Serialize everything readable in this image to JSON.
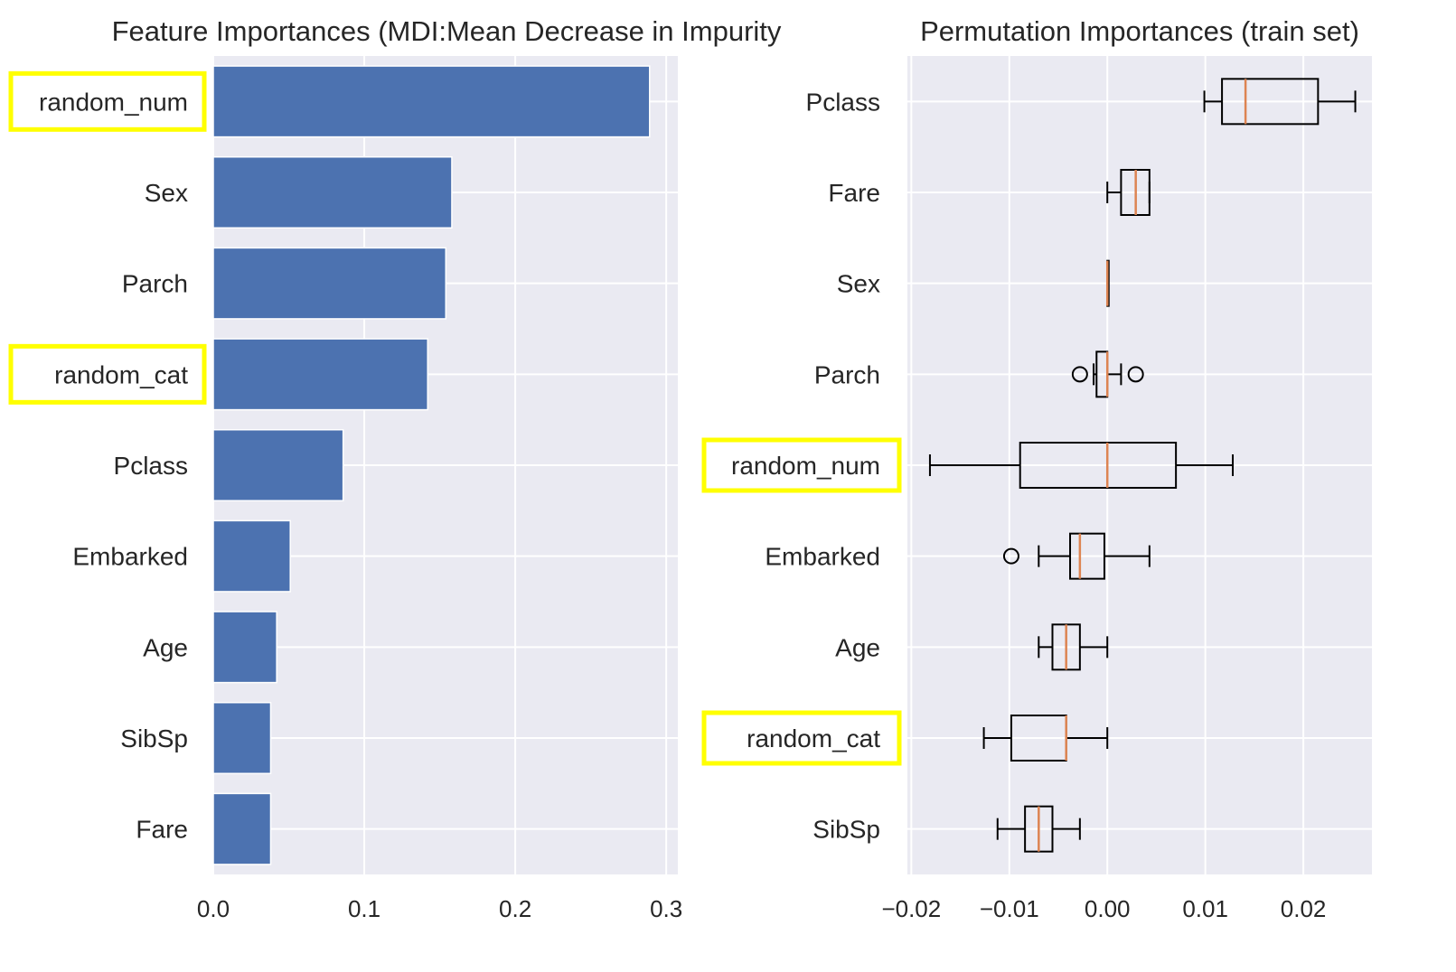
{
  "colors": {
    "plot_background": "#eaeaf2",
    "grid": "#ffffff",
    "bar": "#4c72b0",
    "box_line": "#000000",
    "median": "#dd8452",
    "highlight": "#ffff00",
    "text": "#262626"
  },
  "chart_data": [
    {
      "type": "bar",
      "orientation": "horizontal",
      "title": "Feature Importances (MDI:Mean Decrease in Impurity",
      "categories": [
        "random_num",
        "Sex",
        "Parch",
        "random_cat",
        "Pclass",
        "Embarked",
        "Age",
        "SibSp",
        "Fare"
      ],
      "values": [
        0.289,
        0.158,
        0.154,
        0.142,
        0.086,
        0.051,
        0.042,
        0.038,
        0.038
      ],
      "xlim": [
        0.0,
        0.3
      ],
      "xticks": [
        0.0,
        0.1,
        0.2,
        0.3
      ],
      "xtick_labels": [
        "0.0",
        "0.1",
        "0.2",
        "0.3"
      ],
      "highlighted": [
        "random_num",
        "random_cat"
      ],
      "grid": true
    },
    {
      "type": "box",
      "orientation": "horizontal",
      "title": "Permutation Importances (train set)",
      "categories": [
        "Pclass",
        "Fare",
        "Sex",
        "Parch",
        "random_num",
        "Embarked",
        "Age",
        "random_cat",
        "SibSp"
      ],
      "boxes": [
        {
          "name": "Pclass",
          "whislo": 0.0099,
          "q1": 0.0117,
          "med": 0.0141,
          "q3": 0.0215,
          "whishi": 0.0253,
          "fliers": []
        },
        {
          "name": "Fare",
          "whislo": 0.0,
          "q1": 0.0014,
          "med": 0.0029,
          "q3": 0.0043,
          "whishi": 0.0043,
          "fliers": []
        },
        {
          "name": "Sex",
          "whislo": 0.0,
          "q1": 0.0,
          "med": 0.0,
          "q3": 0.0,
          "whishi": 0.0,
          "fliers": []
        },
        {
          "name": "Parch",
          "whislo": -0.0014,
          "q1": -0.0011,
          "med": 0.0,
          "q3": 0.0,
          "whishi": 0.0014,
          "fliers": [
            -0.0028,
            0.0029
          ]
        },
        {
          "name": "random_num",
          "whislo": -0.0181,
          "q1": -0.0089,
          "med": 0.0,
          "q3": 0.007,
          "whishi": 0.0128,
          "fliers": []
        },
        {
          "name": "Embarked",
          "whislo": -0.007,
          "q1": -0.0038,
          "med": -0.0028,
          "q3": -0.0003,
          "whishi": 0.0043,
          "fliers": [
            -0.0098
          ]
        },
        {
          "name": "Age",
          "whislo": -0.007,
          "q1": -0.0056,
          "med": -0.0042,
          "q3": -0.0028,
          "whishi": 0.0,
          "fliers": []
        },
        {
          "name": "random_cat",
          "whislo": -0.0126,
          "q1": -0.0098,
          "med": -0.0042,
          "q3": -0.0042,
          "whishi": 0.0,
          "fliers": []
        },
        {
          "name": "SibSp",
          "whislo": -0.0112,
          "q1": -0.0084,
          "med": -0.007,
          "q3": -0.0056,
          "whishi": -0.0028,
          "fliers": []
        }
      ],
      "xlim": [
        -0.0204,
        0.027
      ],
      "xticks": [
        -0.02,
        -0.01,
        0.0,
        0.01,
        0.02
      ],
      "xtick_labels": [
        "−0.02",
        "−0.01",
        "0.00",
        "0.01",
        "0.02"
      ],
      "highlighted": [
        "random_num",
        "random_cat"
      ],
      "grid": true
    }
  ]
}
